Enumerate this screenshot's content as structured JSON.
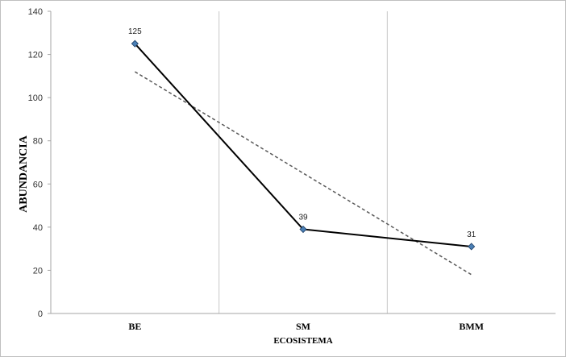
{
  "chart_data": {
    "type": "line",
    "categories": [
      "BE",
      "SM",
      "BMM"
    ],
    "series": [
      {
        "values": [
          125,
          39,
          31
        ],
        "color": "#000000",
        "marker": "diamond",
        "marker_color": "#4a7fb5"
      }
    ],
    "trendline": {
      "type": "linear",
      "style": "dashed",
      "color": "#595959"
    },
    "data_labels": [
      "125",
      "39",
      "31"
    ],
    "xlabel": "ECOSISTEMA",
    "ylabel": "ABUNDANCIA",
    "ylim": [
      0,
      140
    ],
    "yticks": [
      "0",
      "20",
      "40",
      "60",
      "80",
      "100",
      "120",
      "140"
    ],
    "grid": "vertical category separators"
  }
}
